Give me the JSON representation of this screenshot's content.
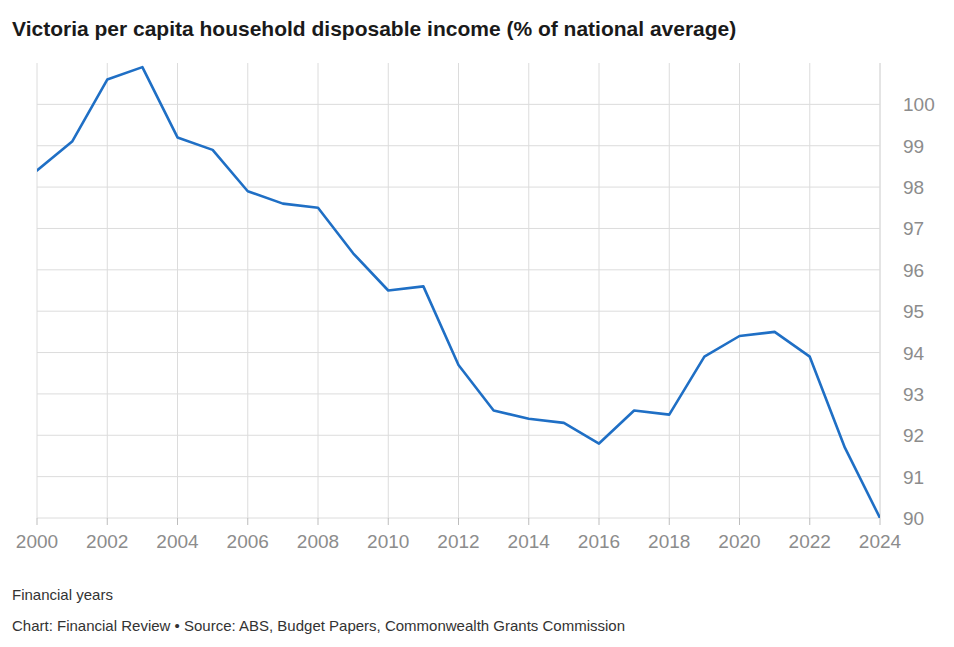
{
  "chart_data": {
    "type": "line",
    "title": "Victoria per capita household disposable income (% of national average)",
    "x_label": "Financial years",
    "source": "Chart: Financial Review • Source: ABS, Budget Papers, Commonwealth Grants Commission",
    "x": [
      2000,
      2001,
      2002,
      2003,
      2004,
      2005,
      2006,
      2007,
      2008,
      2009,
      2010,
      2011,
      2012,
      2013,
      2014,
      2015,
      2016,
      2017,
      2018,
      2019,
      2020,
      2021,
      2022,
      2023,
      2024
    ],
    "series": [
      {
        "name": "Victoria",
        "color": "#1f6fc5",
        "values": [
          98.4,
          99.1,
          100.6,
          100.9,
          99.2,
          98.9,
          97.9,
          97.6,
          97.5,
          96.4,
          95.5,
          95.6,
          93.7,
          92.6,
          92.4,
          92.3,
          91.8,
          92.6,
          92.5,
          93.9,
          94.4,
          94.5,
          93.9,
          91.7,
          90.0
        ]
      }
    ],
    "xlim": [
      2000,
      2024
    ],
    "xticks": [
      2000,
      2002,
      2004,
      2006,
      2008,
      2010,
      2012,
      2014,
      2016,
      2018,
      2020,
      2022,
      2024
    ],
    "ylim": [
      90,
      101
    ],
    "yticks": [
      90,
      91,
      92,
      93,
      94,
      95,
      96,
      97,
      98,
      99,
      100
    ],
    "grid": true
  }
}
